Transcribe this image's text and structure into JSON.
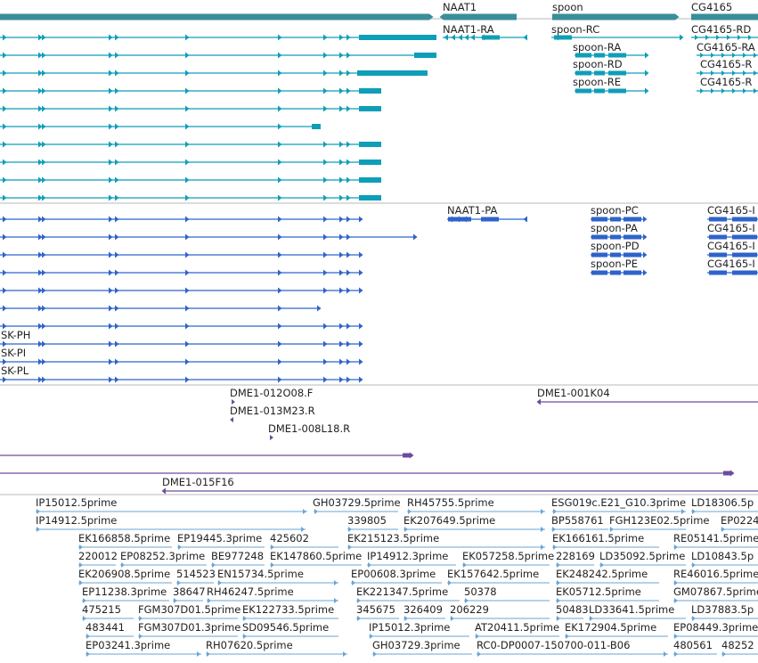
{
  "colors": {
    "gene": "#3a8e9a",
    "transcript": "#0f9eb8",
    "protein": "#2f63c9",
    "clone": "#6b4d9e",
    "est": "#6aa6d6",
    "divider": "#b8b8b8"
  },
  "genes": [
    {
      "id": "gene-left",
      "label": ""
    },
    {
      "id": "gene-naat1",
      "label": "NAAT1"
    },
    {
      "id": "gene-spoon",
      "label": "spoon"
    },
    {
      "id": "gene-cg4165",
      "label": "CG4165"
    }
  ],
  "transcript_labels": [
    "NAAT1-RA",
    "spoon-RC",
    "spoon-RA",
    "spoon-RD",
    "spoon-RE",
    "CG4165-RD",
    "CG4165-RA",
    "CG4165-R",
    "CG4165-R"
  ],
  "protein_labels": [
    "NAAT1-PA",
    "spoon-PC",
    "spoon-PA",
    "spoon-PD",
    "spoon-PE",
    "CG4165-I",
    "CG4165-I",
    "CG4165-I",
    "CG4165-I",
    "SK-PH",
    "SK-PI",
    "SK-PL"
  ],
  "clone_labels": [
    "DME1-012O08.F",
    "DME1-013M23.R",
    "DME1-008L18.R",
    "DME1-001K04",
    "DME1-015F16"
  ],
  "est_labels": [
    "IP15012.5prime",
    "GH03729.5prime",
    "RH45755.5prime",
    "ESG019c.E21_G10.3prime",
    "LD18306.5p",
    "IP14912.5prime",
    "339805",
    "EK207649.5prime",
    "BP558761",
    "FGH123E02.5prime",
    "EP0224",
    "EK166858.5prime",
    "EP19445.3prime",
    "425602",
    "EK215123.5prime",
    "EK166161.5prime",
    "RE05141.5prime",
    "220012",
    "EP08252.3prime",
    "BE977248",
    "EK147860.5prime",
    "IP14912.3prime",
    "EK057258.5prime",
    "228169",
    "LD35092.5prime",
    "LD10843.5p",
    "EK206908.5prime",
    "514523",
    "EN15734.5prime",
    "EP00608.3prime",
    "EK157642.5prime",
    "EK248242.5prime",
    "RE46016.5prime",
    "EP11238.3prime",
    "38647",
    "RH46247.5prime",
    "EK221347.5prime",
    "50378",
    "EK05712.5prime",
    "GM07867.5prime",
    "475215",
    "FGM307D01.5prime",
    "EK122733.5prime",
    "345675",
    "326409",
    "206229",
    "50483",
    "LD33641.5prime",
    "LD37883.5p",
    "483441",
    "FGM307D01.3prime",
    "SD09546.5prime",
    "IP15012.3prime",
    "AT20411.5prime",
    "EK172904.5prime",
    "EP08449.3prime",
    "EP03241.3prime",
    "RH07620.5prime",
    "GH03729.3prime",
    "RC0-DP0007-150700-011-B06",
    "480561",
    "48252"
  ]
}
